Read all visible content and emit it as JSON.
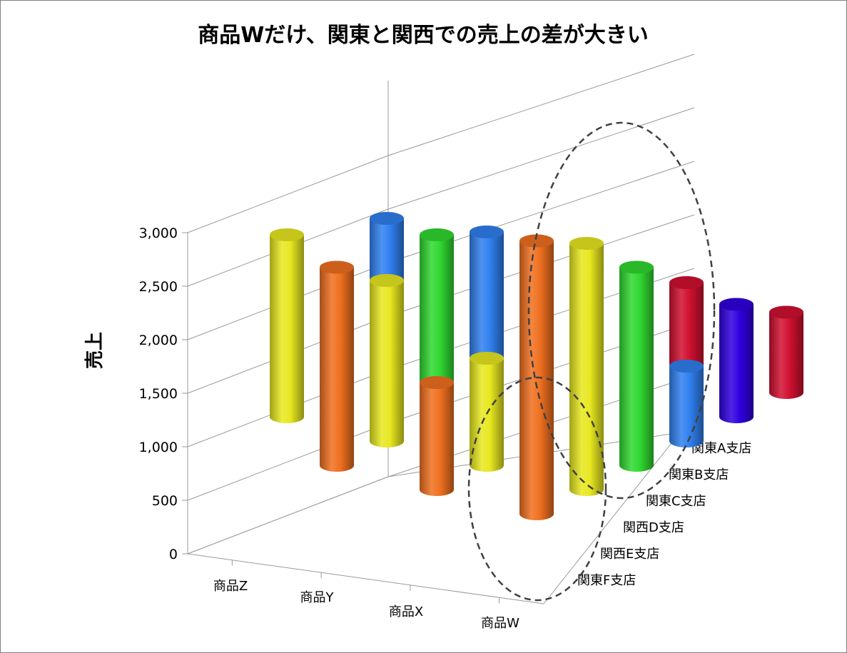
{
  "chart_data": {
    "type": "bar",
    "subtype": "3d-cylinder",
    "title": "商品Wだけ、関東と関西での売上の差が大きい",
    "xlabel": "",
    "ylabel": "売上",
    "ylim": [
      0,
      3000
    ],
    "y_ticks": [
      "0",
      "500",
      "1,000",
      "1,500",
      "2,000",
      "2,500",
      "3,000"
    ],
    "categories": [
      "商品Z",
      "商品Y",
      "商品X",
      "商品W"
    ],
    "series": [
      {
        "name": "関東A支店",
        "color": "#F07020",
        "values": [
          0,
          1850,
          1000,
          2550
        ]
      },
      {
        "name": "関東B支店",
        "color": "#E8E820",
        "values": [
          1700,
          1500,
          1000,
          2300
        ]
      },
      {
        "name": "関東C支店",
        "color": "#30D830",
        "values": [
          500,
          1700,
          700,
          1850
        ]
      },
      {
        "name": "関西D支店",
        "color": "#3080F0",
        "values": [
          1400,
          1500,
          650,
          700
        ]
      },
      {
        "name": "関西E支店",
        "color": "#3000E0",
        "values": [
          850,
          450,
          650,
          1050
        ]
      },
      {
        "name": "関東F支店",
        "color": "#D01030",
        "values": [
          350,
          750,
          800,
          750
        ]
      }
    ],
    "grid": true,
    "legend": "none",
    "annotations": [
      {
        "type": "dashed-ellipse",
        "target": "商品W 関東A支店・関東B支店・関東C支店"
      },
      {
        "type": "dashed-ellipse",
        "target": "商品W 関西D支店・関西E支店・関東F支店"
      }
    ]
  }
}
